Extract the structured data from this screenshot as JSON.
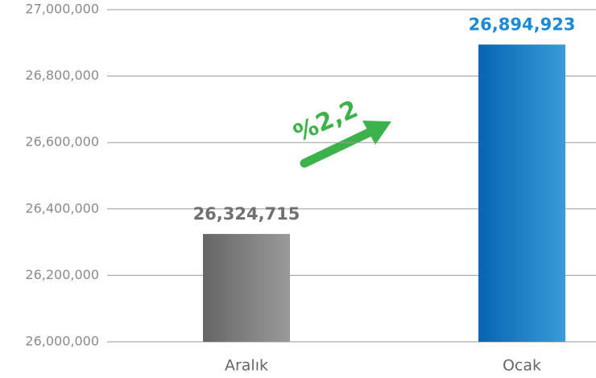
{
  "chart_data": {
    "type": "bar",
    "categories": [
      "Aralık",
      "Ocak"
    ],
    "values": [
      26324715,
      26894923
    ],
    "value_labels": [
      "26,324,715",
      "26,894,923"
    ],
    "value_label_colors": [
      "#707070",
      "#1a8ad4"
    ],
    "gradients": [
      [
        "#666666",
        "#9a9a9a"
      ],
      [
        "#0565b2",
        "#3a9bd7"
      ]
    ],
    "ylim": [
      26000000,
      27000000
    ],
    "yticks": [
      {
        "value": 26000000,
        "label": "26,000,000"
      },
      {
        "value": 26200000,
        "label": "26,200,000"
      },
      {
        "value": 26400000,
        "label": "26,400,000"
      },
      {
        "value": 26600000,
        "label": "26,600,000"
      },
      {
        "value": 26800000,
        "label": "26,800,000"
      },
      {
        "value": 27000000,
        "label": "27,000,000"
      }
    ],
    "grid": true,
    "annotation": "%2,2"
  }
}
